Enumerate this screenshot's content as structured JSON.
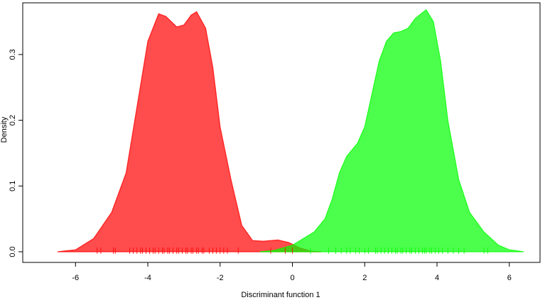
{
  "chart_data": {
    "type": "density",
    "xlabel": "Discriminant function 1",
    "ylabel": "Density",
    "xlim": [
      -7.46,
      6.85
    ],
    "ylim": [
      -0.0162,
      0.3786
    ],
    "xticks": [
      -6,
      -4,
      -2,
      0,
      2,
      4,
      6
    ],
    "yticks": [
      {
        "value": 0,
        "label": "0.0"
      },
      0.1,
      0.2,
      0.3
    ],
    "series": [
      {
        "color": "#ff0000",
        "x": [
          -6.5,
          -6.0,
          -5.5,
          -5.0,
          -4.6,
          -4.3,
          -4.0,
          -3.7,
          -3.5,
          -3.2,
          -3.0,
          -2.8,
          -2.65,
          -2.4,
          -2.2,
          -2.0,
          -1.7,
          -1.4,
          -1.1,
          -0.8,
          -0.4,
          -0.1,
          0.2,
          0.5,
          0.8
        ],
        "values": [
          0.0,
          0.003,
          0.02,
          0.06,
          0.12,
          0.22,
          0.32,
          0.362,
          0.358,
          0.342,
          0.345,
          0.36,
          0.365,
          0.34,
          0.28,
          0.19,
          0.11,
          0.04,
          0.017,
          0.016,
          0.018,
          0.014,
          0.006,
          0.001,
          0.0
        ],
        "rug": [
          -5.4,
          -5.3,
          -4.95,
          -4.9,
          -4.5,
          -4.4,
          -4.3,
          -4.2,
          -4.15,
          -4.05,
          -3.95,
          -3.85,
          -3.8,
          -3.7,
          -3.6,
          -3.55,
          -3.45,
          -3.4,
          -3.3,
          -3.2,
          -3.15,
          -3.05,
          -2.95,
          -2.9,
          -2.8,
          -2.75,
          -2.65,
          -2.6,
          -2.5,
          -2.45,
          -2.3,
          -2.2,
          -2.1,
          -2.0,
          -1.9,
          -1.8,
          -1.5,
          -0.6,
          -0.2,
          0.0
        ]
      },
      {
        "color": "#00ff00",
        "x": [
          -0.9,
          -0.5,
          0.0,
          0.3,
          0.6,
          0.9,
          1.1,
          1.3,
          1.5,
          1.8,
          2.0,
          2.2,
          2.4,
          2.6,
          2.8,
          3.0,
          3.2,
          3.4,
          3.7,
          3.9,
          4.1,
          4.3,
          4.6,
          4.9,
          5.3,
          5.7,
          6.0,
          6.4
        ],
        "values": [
          0.0,
          0.002,
          0.01,
          0.02,
          0.03,
          0.05,
          0.08,
          0.12,
          0.145,
          0.165,
          0.19,
          0.24,
          0.29,
          0.32,
          0.333,
          0.335,
          0.34,
          0.355,
          0.368,
          0.35,
          0.29,
          0.2,
          0.11,
          0.06,
          0.03,
          0.01,
          0.003,
          0.0
        ],
        "rug": [
          0.5,
          1.0,
          1.2,
          1.35,
          1.5,
          1.6,
          1.75,
          1.85,
          2.0,
          2.1,
          2.3,
          2.35,
          2.45,
          2.55,
          2.65,
          2.75,
          2.85,
          2.9,
          3.0,
          3.05,
          3.15,
          3.25,
          3.3,
          3.4,
          3.5,
          3.6,
          3.65,
          3.7,
          3.8,
          3.85,
          3.95,
          4.05,
          4.15,
          4.3,
          4.45,
          4.6,
          4.75,
          5.3,
          5.4
        ]
      }
    ]
  }
}
